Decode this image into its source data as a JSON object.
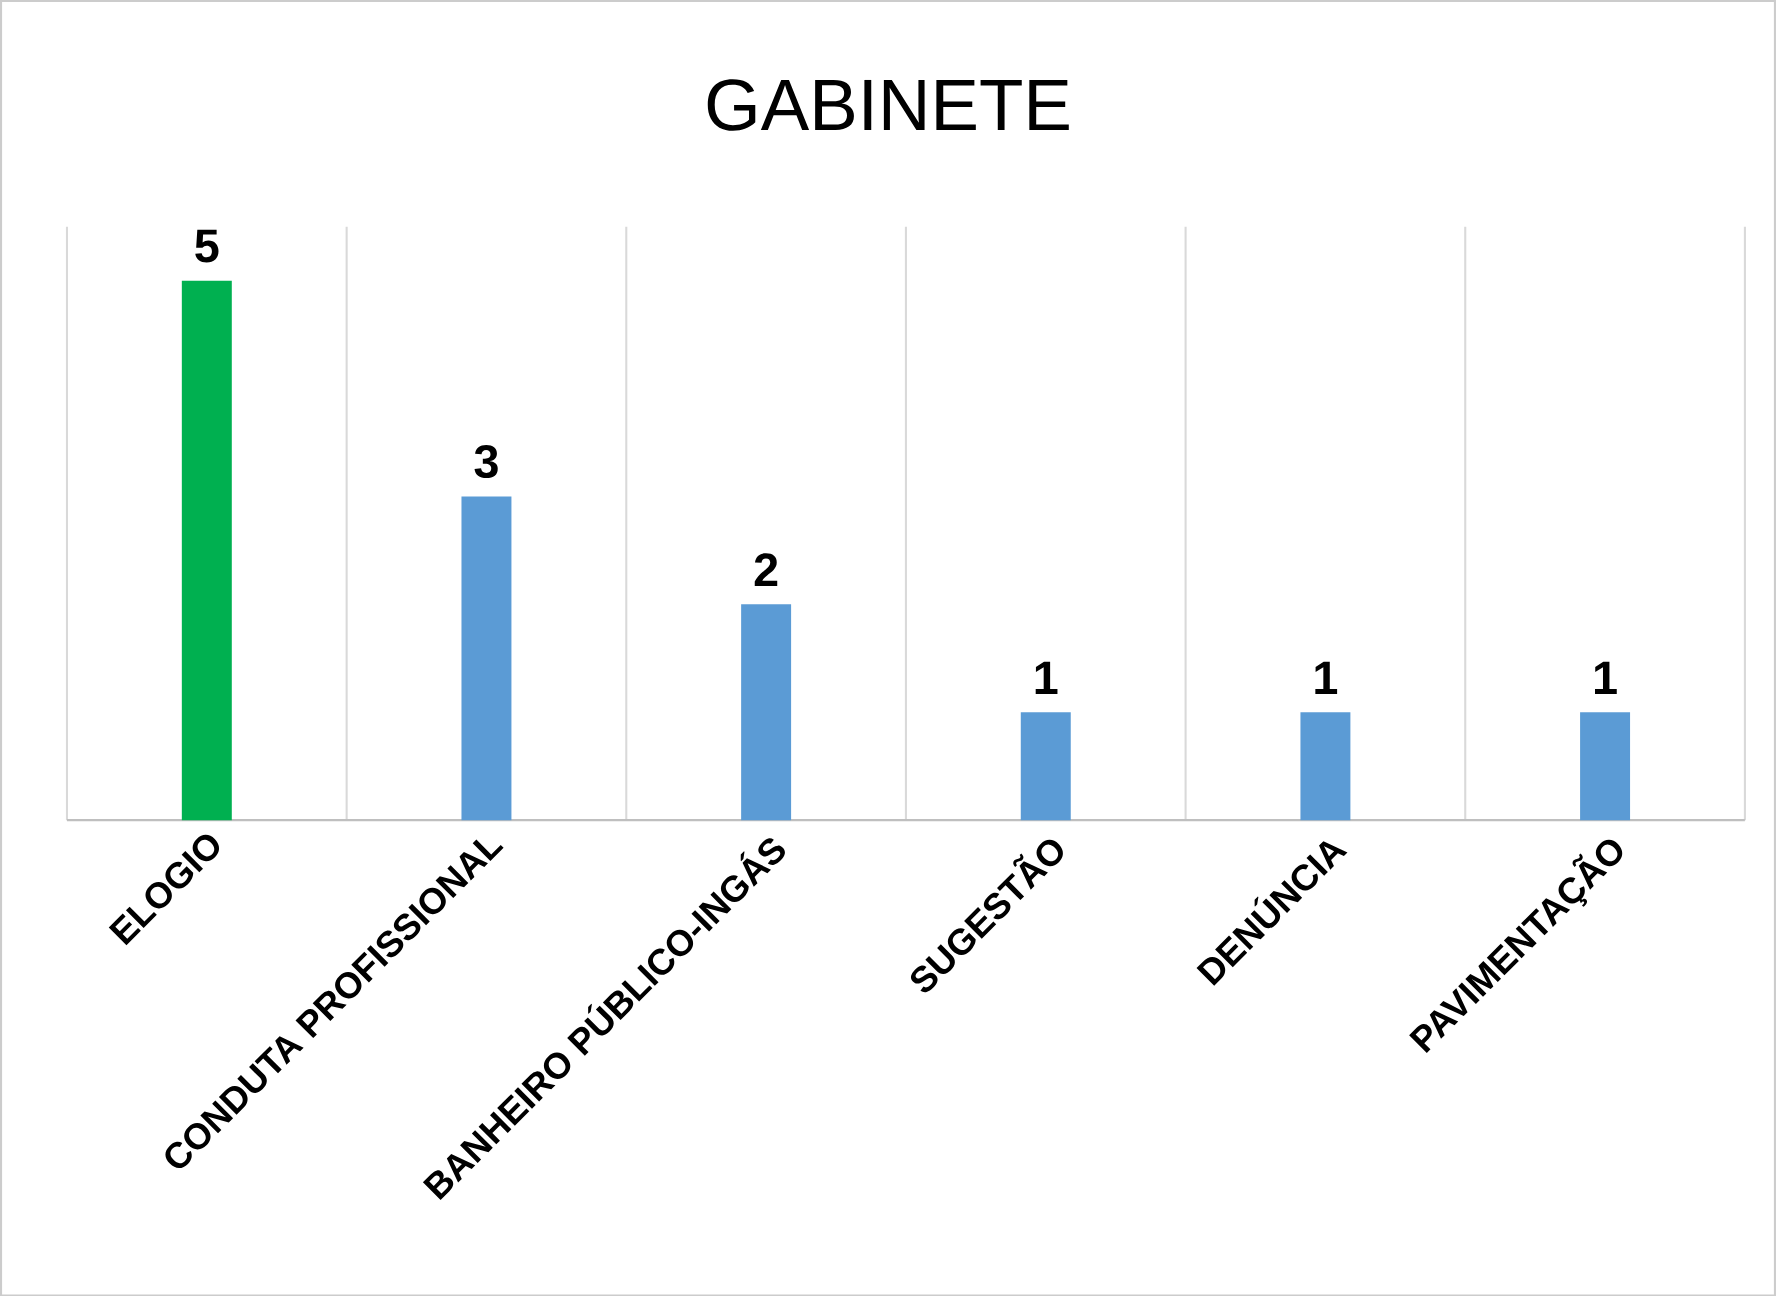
{
  "chart_data": {
    "type": "bar",
    "title": "GABINETE",
    "categories": [
      "ELOGIO",
      "CONDUTA PROFISSIONAL",
      "BANHEIRO PÚBLICO-INGÁS",
      "SUGESTÃO",
      "DENÚNCIA",
      "PAVIMENTAÇÃO"
    ],
    "values": [
      5,
      3,
      2,
      1,
      1,
      1
    ],
    "colors": [
      "#00b050",
      "#5b9bd5",
      "#5b9bd5",
      "#5b9bd5",
      "#5b9bd5",
      "#5b9bd5"
    ],
    "data_labels": true,
    "grid": "x"
  }
}
